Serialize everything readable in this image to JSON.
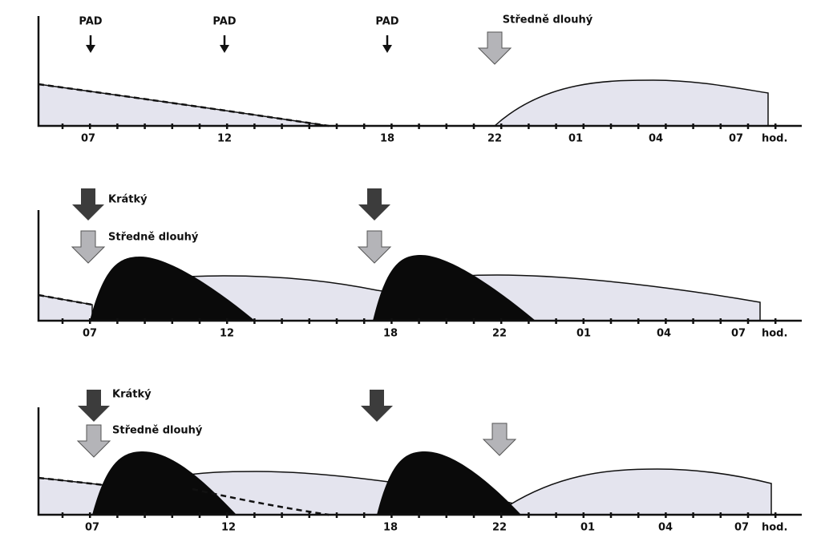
{
  "panels": [
    {
      "labels": [
        "PAD",
        "PAD",
        "PAD",
        "Středně dlouhý"
      ],
      "ticks": [
        "07",
        "12",
        "18",
        "22",
        "01",
        "04",
        "07"
      ],
      "unit": "hod."
    },
    {
      "labels": [
        "Krátký",
        "Středně dlouhý"
      ],
      "ticks": [
        "07",
        "12",
        "18",
        "22",
        "01",
        "04",
        "07"
      ],
      "unit": "hod."
    },
    {
      "labels": [
        "Krátký",
        "Středně dlouhý"
      ],
      "ticks": [
        "07",
        "12",
        "18",
        "22",
        "01",
        "04",
        "07"
      ],
      "unit": "hod."
    }
  ]
}
